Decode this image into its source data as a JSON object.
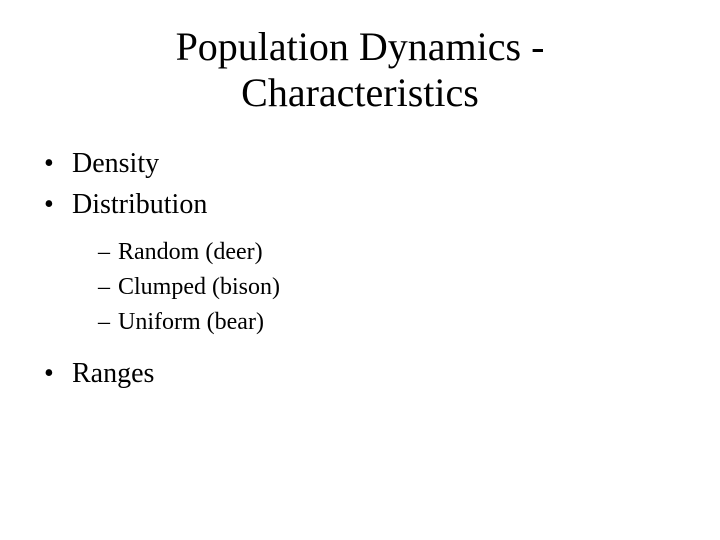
{
  "slide": {
    "title_line1": "Population Dynamics -",
    "title_line2": "Characteristics",
    "title_fontsize": 40,
    "body_fontsize_level1": 28,
    "body_fontsize_level2": 24,
    "font_family": "Times New Roman",
    "background_color": "#ffffff",
    "text_color": "#000000",
    "bullets": [
      {
        "text": "Density"
      },
      {
        "text": "Distribution",
        "children": [
          {
            "text": "Random (deer)"
          },
          {
            "text": "Clumped (bison)"
          },
          {
            "text": "Uniform (bear)"
          }
        ]
      },
      {
        "text": "Ranges"
      }
    ]
  }
}
